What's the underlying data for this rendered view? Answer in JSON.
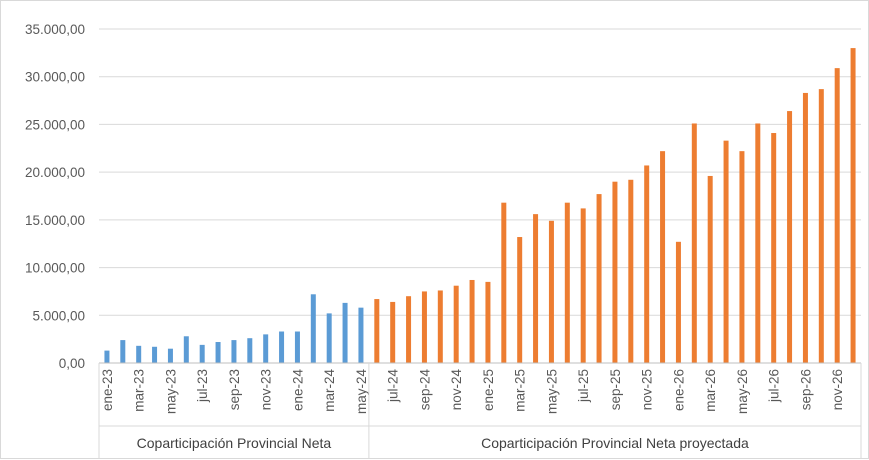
{
  "chart_data": {
    "type": "bar",
    "title": "",
    "xlabel": "",
    "ylabel": "",
    "ylim": [
      0,
      35000
    ],
    "y_ticks": [
      "0,00",
      "5.000,00",
      "10.000,00",
      "15.000,00",
      "20.000,00",
      "25.000,00",
      "30.000,00",
      "35.000,00"
    ],
    "grid": true,
    "legend": "none",
    "categories": [
      "ene-23",
      "feb-23",
      "mar-23",
      "abr-23",
      "may-23",
      "jun-23",
      "jul-23",
      "ago-23",
      "sep-23",
      "oct-23",
      "nov-23",
      "dic-23",
      "ene-24",
      "feb-24",
      "mar-24",
      "abr-24",
      "may-24",
      "jun-24",
      "jul-24",
      "ago-24",
      "sep-24",
      "oct-24",
      "nov-24",
      "dic-24",
      "ene-25",
      "feb-25",
      "mar-25",
      "abr-25",
      "may-25",
      "jun-25",
      "jul-25",
      "ago-25",
      "sep-25",
      "oct-25",
      "nov-25",
      "dic-25",
      "ene-26",
      "feb-26",
      "mar-26",
      "abr-26",
      "may-26",
      "jun-26",
      "jul-26",
      "ago-26",
      "sep-26",
      "oct-26",
      "nov-26",
      "dic-26"
    ],
    "x_tick_labels": [
      "ene-23",
      "mar-23",
      "may-23",
      "jul-23",
      "sep-23",
      "nov-23",
      "ene-24",
      "mar-24",
      "may-24",
      "jul-24",
      "sep-24",
      "nov-24",
      "ene-25",
      "mar-25",
      "may-25",
      "jul-25",
      "sep-25",
      "nov-25",
      "ene-26",
      "mar-26",
      "may-26",
      "jul-26",
      "sep-26",
      "nov-26"
    ],
    "groups": [
      "Coparticipación Provincial Neta",
      "Coparticipación Provincial Neta proyectada"
    ],
    "series": [
      {
        "color": "#5b9bd5",
        "values": [
          1300,
          2400,
          1800,
          1700,
          1500,
          2800,
          1900,
          2200,
          2400,
          2600,
          3000,
          3300,
          3300,
          7200,
          5200,
          6300,
          5800,
          null,
          null,
          null,
          null,
          null,
          null,
          null,
          null,
          null,
          null,
          null,
          null,
          null,
          null,
          null,
          null,
          null,
          null,
          null,
          null,
          null,
          null,
          null,
          null,
          null,
          null,
          null,
          null,
          null,
          null,
          null
        ]
      },
      {
        "color": "#ed7d31",
        "values": [
          null,
          null,
          null,
          null,
          null,
          null,
          null,
          null,
          null,
          null,
          null,
          null,
          null,
          null,
          null,
          null,
          null,
          6700,
          6400,
          7000,
          7500,
          7600,
          8100,
          8700,
          8500,
          16800,
          13200,
          15600,
          14900,
          16800,
          16200,
          17700,
          19000,
          19200,
          20700,
          22200,
          12700,
          25100,
          19600,
          23300,
          22200,
          25100,
          24100,
          26400,
          28300,
          28700,
          30900,
          33000
        ]
      }
    ]
  }
}
